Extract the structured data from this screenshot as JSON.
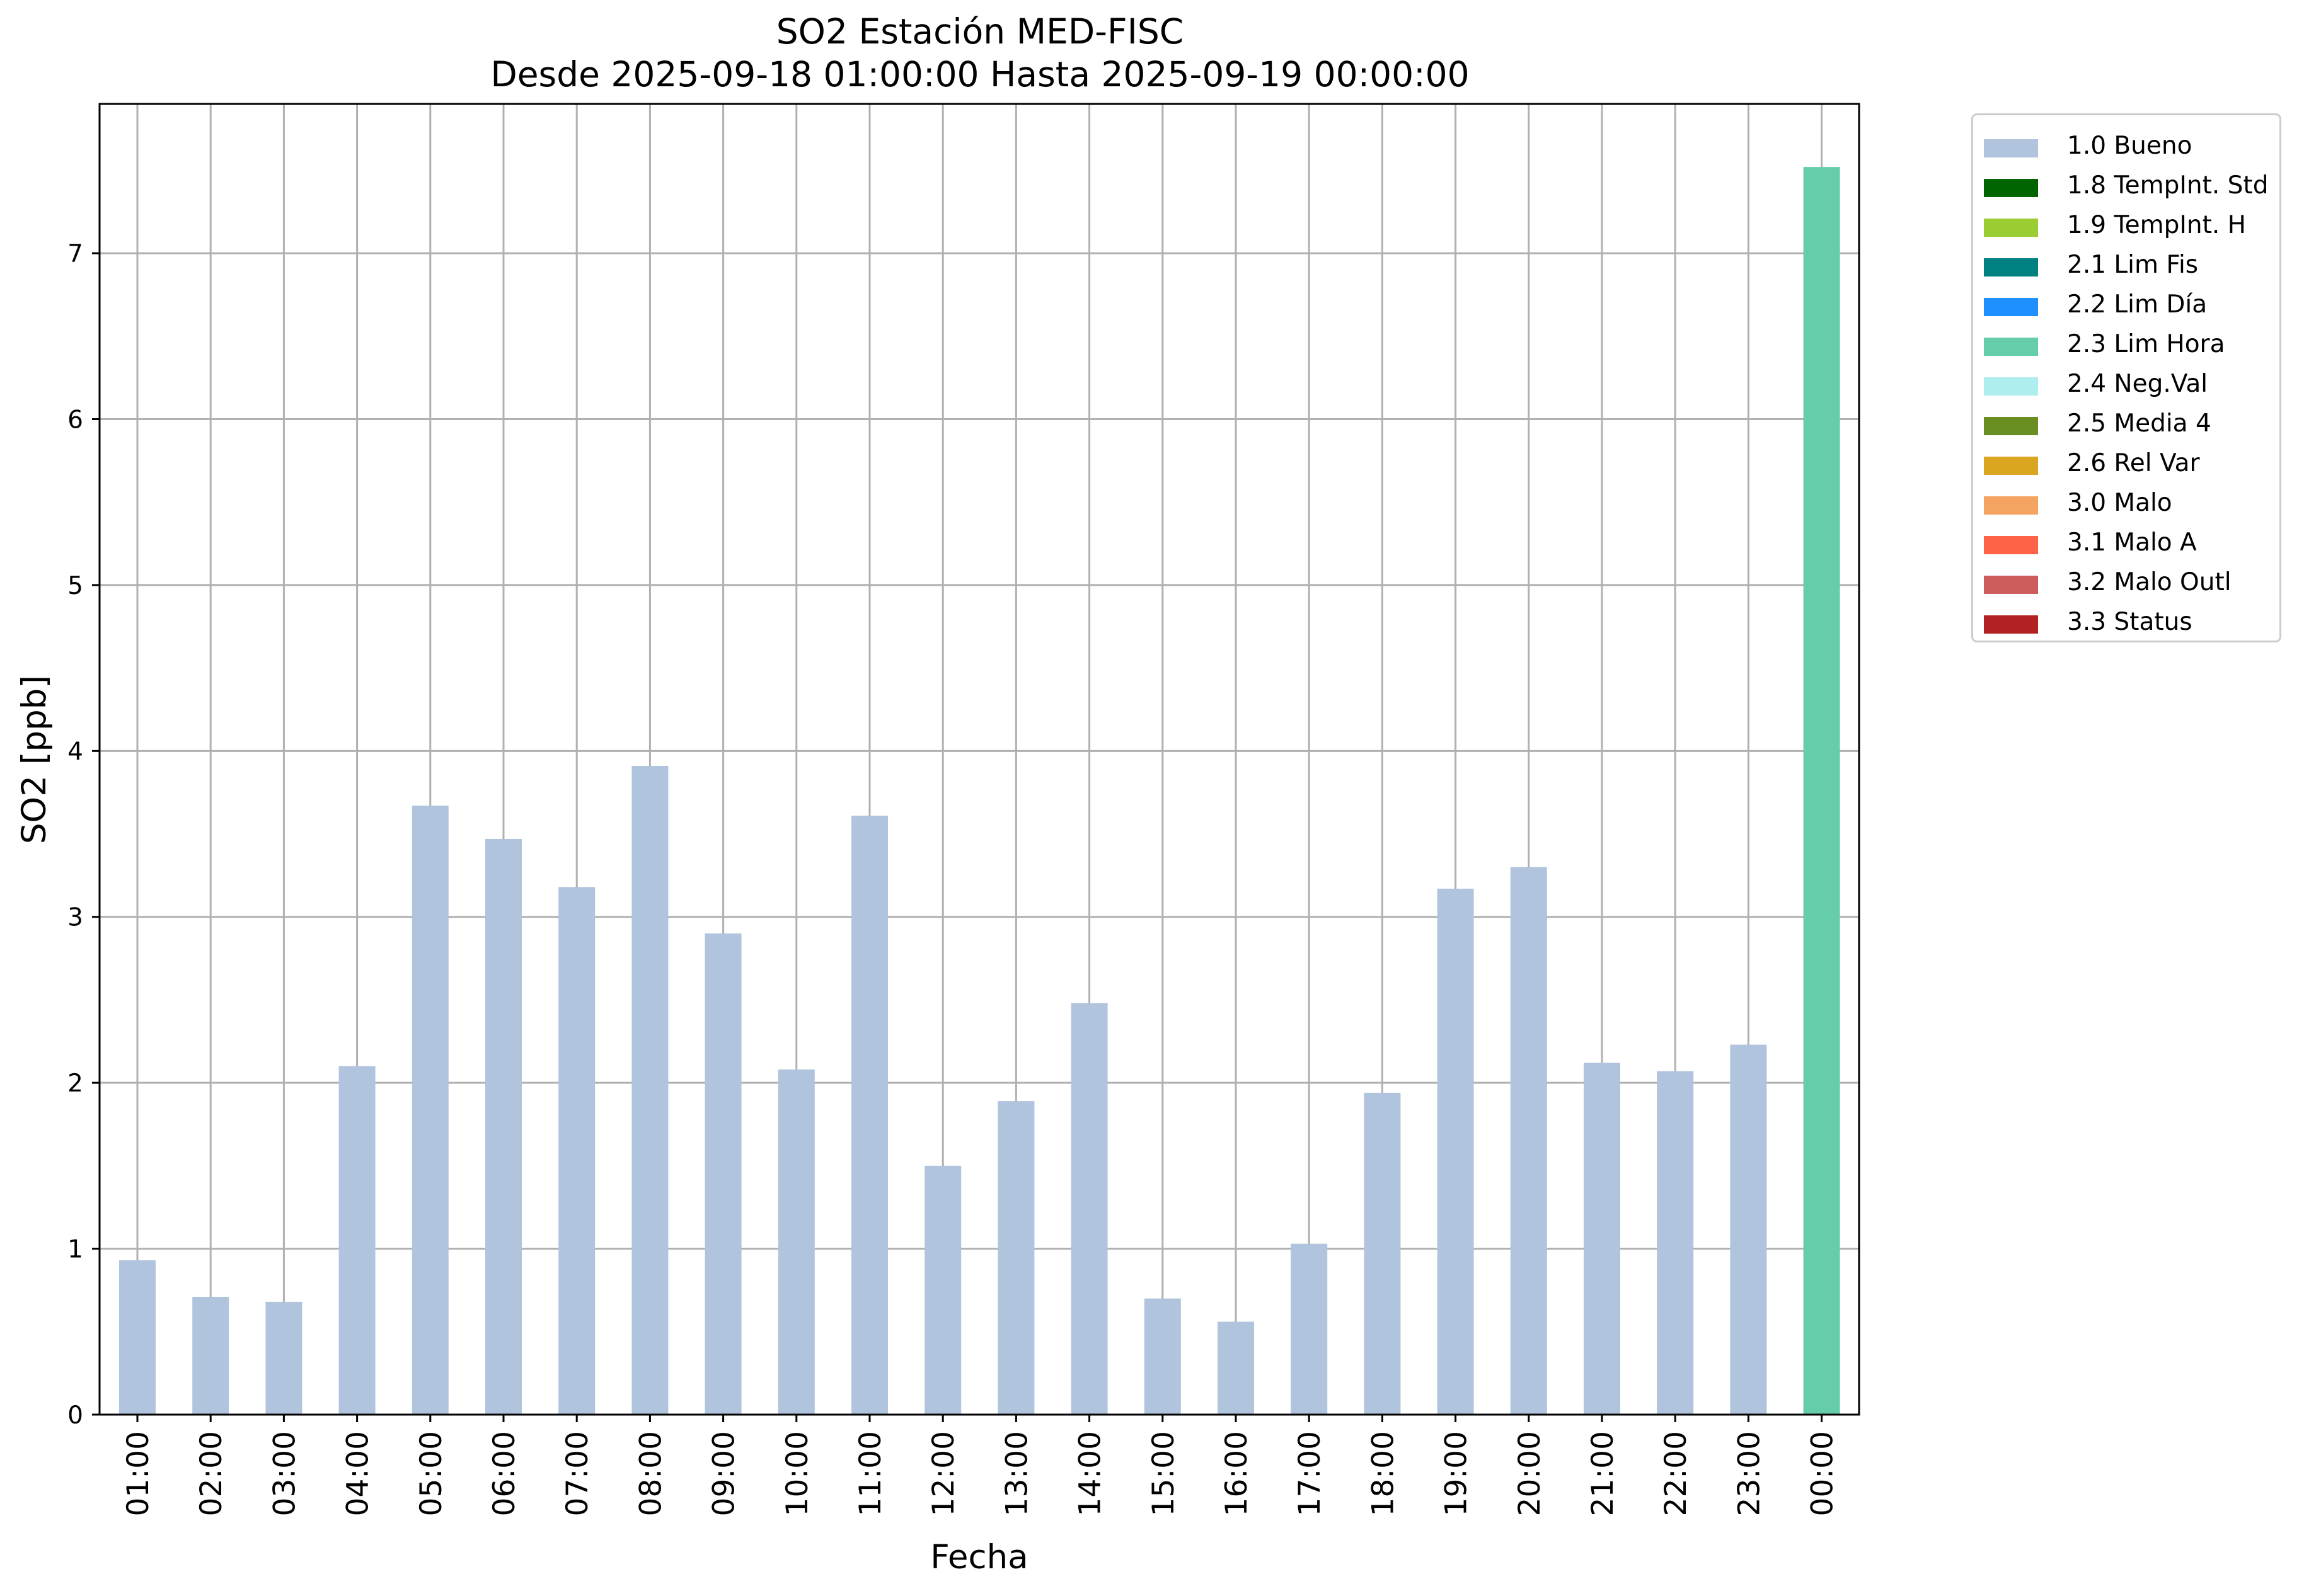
{
  "chart_data": {
    "type": "bar",
    "title": "SO2 Estación MED-FISC",
    "subtitle": "Desde 2025-09-18 01:00:00 Hasta 2025-09-19 00:00:00",
    "xlabel": "Fecha",
    "ylabel": "SO2 [ppb]",
    "ylim": [
      0,
      7.9
    ],
    "yticks": [
      "0",
      "1",
      "2",
      "3",
      "4",
      "5",
      "6",
      "7"
    ],
    "grid": true,
    "legend_position": "outside-top-right",
    "categories": [
      "01:00",
      "02:00",
      "03:00",
      "04:00",
      "05:00",
      "06:00",
      "07:00",
      "08:00",
      "09:00",
      "10:00",
      "11:00",
      "12:00",
      "13:00",
      "14:00",
      "15:00",
      "16:00",
      "17:00",
      "18:00",
      "19:00",
      "20:00",
      "21:00",
      "22:00",
      "23:00",
      "00:00"
    ],
    "values": [
      0.93,
      0.71,
      0.68,
      2.1,
      3.67,
      3.47,
      3.18,
      3.91,
      2.9,
      2.08,
      3.61,
      1.5,
      1.89,
      2.48,
      0.7,
      0.56,
      1.03,
      1.94,
      3.17,
      3.3,
      2.12,
      2.07,
      2.23,
      7.52
    ],
    "flags": [
      "1.0 Bueno",
      "1.0 Bueno",
      "1.0 Bueno",
      "1.0 Bueno",
      "1.0 Bueno",
      "1.0 Bueno",
      "1.0 Bueno",
      "1.0 Bueno",
      "1.0 Bueno",
      "1.0 Bueno",
      "1.0 Bueno",
      "1.0 Bueno",
      "1.0 Bueno",
      "1.0 Bueno",
      "1.0 Bueno",
      "1.0 Bueno",
      "1.0 Bueno",
      "1.0 Bueno",
      "1.0 Bueno",
      "1.0 Bueno",
      "1.0 Bueno",
      "1.0 Bueno",
      "1.0 Bueno",
      "2.3 Lim Hora"
    ],
    "legend": [
      {
        "label": "1.0 Bueno",
        "color": "#b0c4de"
      },
      {
        "label": "1.8 TempInt. Std",
        "color": "#006400"
      },
      {
        "label": "1.9 TempInt. H",
        "color": "#9acd32"
      },
      {
        "label": "2.1 Lim Fis",
        "color": "#008080"
      },
      {
        "label": "2.2 Lim Día",
        "color": "#1e90ff"
      },
      {
        "label": "2.3 Lim Hora",
        "color": "#66cdaa"
      },
      {
        "label": "2.4 Neg.Val",
        "color": "#afeeee"
      },
      {
        "label": "2.5 Media 4",
        "color": "#6b8e23"
      },
      {
        "label": "2.6 Rel Var",
        "color": "#daa520"
      },
      {
        "label": "3.0 Malo",
        "color": "#f4a460"
      },
      {
        "label": "3.1 Malo A",
        "color": "#ff6347"
      },
      {
        "label": "3.2 Malo Outl",
        "color": "#cd5c5c"
      },
      {
        "label": "3.3 Status",
        "color": "#b22222"
      }
    ]
  }
}
